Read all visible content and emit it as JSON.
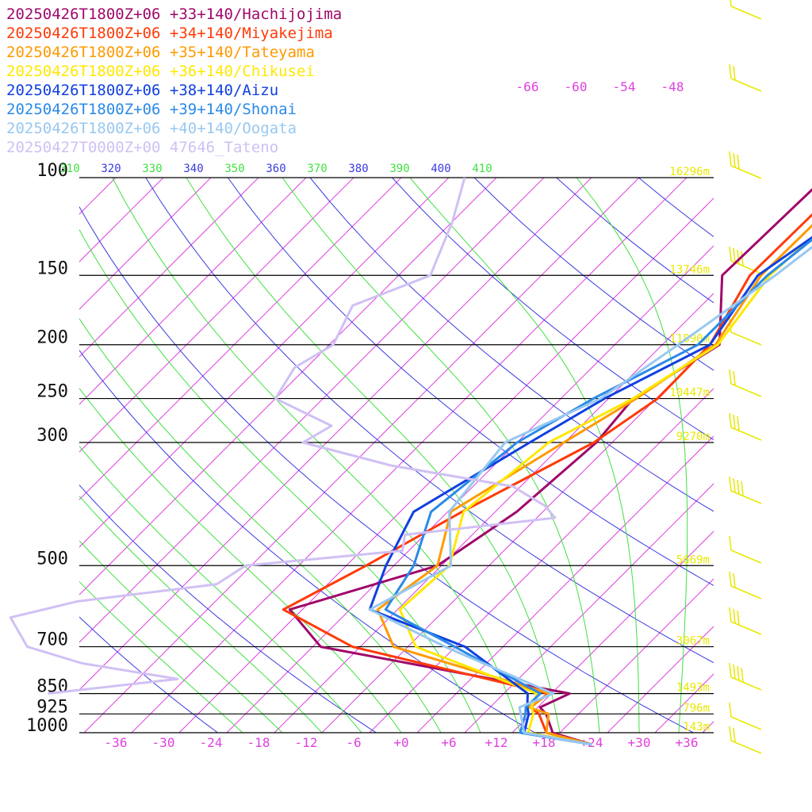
{
  "chart_data": {
    "type": "line",
    "title": "",
    "xlabel": "",
    "ylabel": "",
    "pressure_levels": [
      100,
      150,
      200,
      250,
      300,
      500,
      700,
      850,
      925,
      1000
    ],
    "pressure_labels": [
      "100",
      "150",
      "200",
      "250",
      "300",
      "500",
      "700",
      "850",
      "925",
      "1000"
    ],
    "x_ticks": [
      -36,
      -30,
      -24,
      -18,
      -12,
      -6,
      0,
      6,
      12,
      18,
      24,
      30,
      36
    ],
    "x_tick_labels": [
      "-36",
      "-30",
      "-24",
      "-18",
      "-12",
      "-6",
      "+0",
      "+6",
      "+12",
      "+18",
      "+24",
      "+30",
      "+36"
    ],
    "theta_labels": [
      "310",
      "320",
      "330",
      "340",
      "350",
      "360",
      "370",
      "380",
      "390",
      "400",
      "410"
    ],
    "mixing_labels": [
      "-66",
      "-60",
      "-54",
      "-48"
    ],
    "height_labels": [
      "16296m",
      "13746m",
      "11890m",
      "10447m",
      "9270m",
      "5669m",
      "3067m",
      "1493m",
      "796m",
      "143m"
    ],
    "colors": {
      "isobar": "#000000",
      "isotherm": "#e040e0",
      "dry_adiabat": "#3a3ae0",
      "moist_adiabat": "#40e040",
      "height_label": "#e8e800",
      "wind_barb": "#e8e800",
      "tick_label": "#e040e0",
      "dry_label": "#3a3ae0",
      "moist_label": "#40e040"
    },
    "series": [
      {
        "name": "20250426T1800Z+06 +33+140/Hachijojima",
        "color": "#a0086a",
        "x": [
          -16.6,
          -17.2,
          -8.8,
          -12.9,
          -12.0,
          -13.3,
          -16.5,
          -29.6,
          -21.0,
          16.3,
          14.3,
          15.9,
          19.1,
          25.5
        ],
        "p": [
          100,
          150,
          200,
          250,
          300,
          400,
          500,
          600,
          700,
          850,
          900,
          925,
          1000,
          1050
        ]
      },
      {
        "name": "20250426T1800Z+06 +34+140/Miyakejima",
        "color": "#ff3a08",
        "x": [
          -13.4,
          -13.7,
          -10.0,
          -9.8,
          -12.3,
          -20.2,
          -25.5,
          -30.4,
          -17.0,
          13.6,
          13.1,
          15.0,
          18.3,
          25.5
        ],
        "p": [
          100,
          150,
          200,
          250,
          300,
          400,
          500,
          600,
          700,
          850,
          900,
          925,
          1000,
          1050
        ]
      },
      {
        "name": "20250426T1800Z+06 +35+140/Tateyama",
        "color": "#ff9a00",
        "x": [
          -12.0,
          -12.3,
          -9.3,
          -12.5,
          -16.1,
          -21.6,
          -16.5,
          -18.5,
          -11.8,
          13.8,
          12.9,
          16.2,
          18.3,
          25.5
        ],
        "p": [
          100,
          150,
          200,
          250,
          300,
          400,
          500,
          600,
          700,
          850,
          900,
          925,
          1000,
          1050
        ]
      },
      {
        "name": "20250426T1800Z+06 +36+140/Chikusei",
        "color": "#ffe800",
        "x": [
          -9.8,
          -11.2,
          -9.0,
          -12.9,
          -18.0,
          -20.0,
          -15.0,
          -15.7,
          -9.0,
          12.2,
          13.2,
          14.3,
          16.0,
          25.5
        ],
        "p": [
          100,
          150,
          200,
          250,
          300,
          400,
          500,
          600,
          700,
          850,
          900,
          925,
          1000,
          1050
        ]
      },
      {
        "name": "20250426T1800Z+06 +38+140/Aizu",
        "color": "#1040e0",
        "x": [
          -7.4,
          -12.7,
          -10.0,
          -16.5,
          -20.4,
          -26.3,
          -23.0,
          -19.5,
          -2.8,
          11.0,
          12.7,
          13.7,
          15.5,
          25.5
        ],
        "p": [
          100,
          150,
          200,
          250,
          300,
          400,
          500,
          600,
          700,
          850,
          900,
          925,
          1000,
          1050
        ]
      },
      {
        "name": "20250426T1800Z+06 +39+140/Shonai",
        "color": "#2a8ae8",
        "x": [
          -8.4,
          -11.5,
          -11.5,
          -17.9,
          -22.0,
          -24.1,
          -19.5,
          -17.5,
          -4.1,
          12.6,
          12.5,
          13.3,
          15.0,
          25.5
        ],
        "p": [
          100,
          150,
          200,
          250,
          300,
          400,
          500,
          600,
          700,
          850,
          900,
          925,
          1000,
          1050
        ]
      },
      {
        "name": "20250426T1800Z+06 +40+140/Oogata",
        "color": "#98c8f0",
        "x": [
          -6.8,
          -10.5,
          -14.0,
          -17.0,
          -23.5,
          -21.8,
          -14.8,
          -19.5,
          -5.3,
          14.2,
          11.7,
          12.7,
          15.5,
          25.5
        ],
        "p": [
          100,
          150,
          200,
          250,
          300,
          400,
          500,
          600,
          700,
          850,
          900,
          925,
          1000,
          1050
        ]
      },
      {
        "name": "20250427T0000Z+00 47646_Tateno",
        "color": "#d0c0f4",
        "x": [
          -62.0,
          -58.0,
          -54.0,
          -60.0,
          -57.5,
          -59.5,
          -58.0,
          -47.5,
          -49.0,
          -35.0,
          -17.0,
          -10.5,
          -7.7,
          -24.5,
          -22.8,
          -40.7,
          -42.0,
          -57.4,
          -63.8,
          -58.0,
          -49.0,
          -35.0,
          -49.5
        ],
        "p": [
          100,
          120,
          150,
          170,
          200,
          220,
          250,
          280,
          300,
          330,
          360,
          390,
          410,
          440,
          470,
          500,
          540,
          580,
          620,
          700,
          750,
          800,
          850
        ]
      }
    ]
  }
}
